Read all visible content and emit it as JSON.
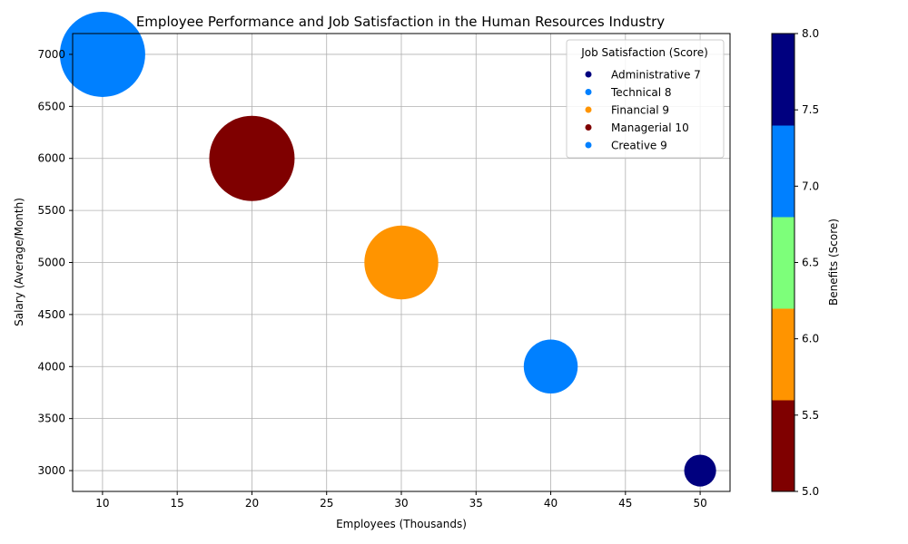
{
  "chart_data": {
    "type": "scatter",
    "title": "Employee Performance and Job Satisfaction in the Human Resources Industry",
    "xlabel": "Employees (Thousands)",
    "ylabel": "Salary (Average/Month)",
    "xlim": [
      8,
      52
    ],
    "ylim": [
      2800,
      7200
    ],
    "xticks": [
      10,
      15,
      20,
      25,
      30,
      35,
      40,
      45,
      50
    ],
    "yticks": [
      3000,
      3500,
      4000,
      4500,
      5000,
      5500,
      6000,
      6500,
      7000
    ],
    "grid": true,
    "legend": {
      "title": "Job Satisfaction (Score)",
      "placement": "top-right"
    },
    "points": [
      {
        "label": "Administrative 7",
        "x": 50,
        "y": 3000,
        "color": "#00007f",
        "size_rel": 0.14
      },
      {
        "label": "Technical 8",
        "x": 40,
        "y": 4000,
        "color": "#0080ff",
        "size_rel": 0.4
      },
      {
        "label": "Financial 9",
        "x": 30,
        "y": 5000,
        "color": "#ff9400",
        "size_rel": 0.75
      },
      {
        "label": "Managerial 10",
        "x": 20,
        "y": 6000,
        "color": "#7f0000",
        "size_rel": 1.0
      },
      {
        "label": "Creative 9",
        "x": 10,
        "y": 7000,
        "color": "#0080ff",
        "size_rel": 1.0
      }
    ],
    "colorbar": {
      "label": "Benefits (Score)",
      "range": [
        5.0,
        8.0
      ],
      "ticks": [
        "5.0",
        "5.5",
        "6.0",
        "6.5",
        "7.0",
        "7.5",
        "8.0"
      ],
      "bands": [
        "#7f0000",
        "#ff9400",
        "#7dff7a",
        "#0080ff",
        "#00007f"
      ]
    }
  }
}
